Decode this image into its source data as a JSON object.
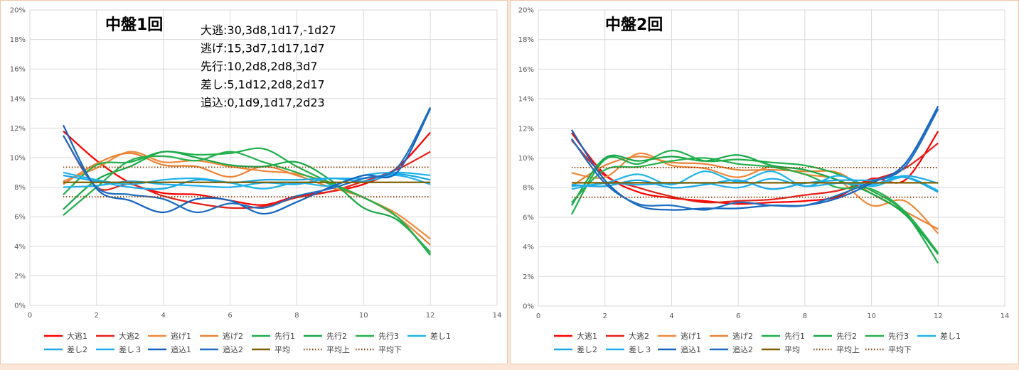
{
  "colors": {
    "background": "#fbe5d6",
    "plot_bg": "#ffffff",
    "grid": "#d9d9d9"
  },
  "legend_items": [
    {
      "label": "大逃1",
      "color": "#ff0000",
      "dash": "solid"
    },
    {
      "label": "大逃2",
      "color": "#e3221a",
      "dash": "solid"
    },
    {
      "label": "逃げ1",
      "color": "#f08a3c",
      "dash": "solid"
    },
    {
      "label": "逃げ2",
      "color": "#e98437",
      "dash": "solid"
    },
    {
      "label": "先行1",
      "color": "#1fb04b",
      "dash": "solid"
    },
    {
      "label": "先行2",
      "color": "#18a848",
      "dash": "solid"
    },
    {
      "label": "先行3",
      "color": "#27b14e",
      "dash": "solid"
    },
    {
      "label": "差し1",
      "color": "#22b5ea",
      "dash": "solid"
    },
    {
      "label": "差し2",
      "color": "#1aa9e6",
      "dash": "solid"
    },
    {
      "label": "差し３",
      "color": "#1fb0ec",
      "dash": "solid"
    },
    {
      "label": "追込1",
      "color": "#1565c0",
      "dash": "solid"
    },
    {
      "label": "追込2",
      "color": "#1f6fbf",
      "dash": "solid"
    },
    {
      "label": "平均",
      "color": "#7f6000",
      "dash": "solid"
    },
    {
      "label": "平均上",
      "color": "#8b4513",
      "dash": "dotted"
    },
    {
      "label": "平均下",
      "color": "#8b4513",
      "dash": "dotted"
    }
  ],
  "chart_data": [
    {
      "type": "line",
      "title": "中盤1回",
      "annotations": [
        "大逃:30,3d8,1d17,-1d27",
        "逃げ:15,3d7,1d17,1d7",
        "先行:10,2d8,2d8,3d7",
        "差し:5,1d12,2d8,2d17",
        "追込:0,1d9,1d17,2d23"
      ],
      "xlim": [
        0,
        14
      ],
      "ylim": [
        0,
        0.2
      ],
      "x_ticks": [
        "0",
        "2",
        "4",
        "6",
        "8",
        "10",
        "12",
        "14"
      ],
      "y_ticks": [
        "0%",
        "2%",
        "4%",
        "6%",
        "8%",
        "10%",
        "12%",
        "14%",
        "16%",
        "18%",
        "20%"
      ],
      "grid": true,
      "legend": "bottom",
      "x": [
        1,
        2,
        3,
        4,
        5,
        6,
        7,
        8,
        9,
        10,
        11,
        12
      ],
      "series": [
        {
          "name": "大逃1",
          "values": [
            0.118,
            0.098,
            0.083,
            0.076,
            0.075,
            0.071,
            0.068,
            0.074,
            0.077,
            0.082,
            0.093,
            0.117
          ]
        },
        {
          "name": "大逃2",
          "values": [
            0.115,
            0.08,
            0.082,
            0.074,
            0.069,
            0.066,
            0.067,
            0.073,
            0.077,
            0.084,
            0.092,
            0.104
          ]
        },
        {
          "name": "逃げ1",
          "values": [
            0.084,
            0.093,
            0.104,
            0.097,
            0.098,
            0.094,
            0.091,
            0.089,
            0.083,
            0.073,
            0.062,
            0.045
          ]
        },
        {
          "name": "逃げ2",
          "values": [
            0.082,
            0.096,
            0.103,
            0.095,
            0.094,
            0.087,
            0.094,
            0.088,
            0.08,
            0.073,
            0.06,
            0.041
          ]
        },
        {
          "name": "先行1",
          "values": [
            0.075,
            0.095,
            0.097,
            0.104,
            0.102,
            0.103,
            0.106,
            0.094,
            0.083,
            0.073,
            0.06,
            0.034
          ]
        },
        {
          "name": "先行2",
          "values": [
            0.065,
            0.085,
            0.094,
            0.104,
            0.1,
            0.095,
            0.094,
            0.097,
            0.085,
            0.066,
            0.058,
            0.036
          ]
        },
        {
          "name": "先行3",
          "values": [
            0.061,
            0.08,
            0.098,
            0.101,
            0.098,
            0.104,
            0.097,
            0.09,
            0.082,
            0.073,
            0.06,
            0.035
          ]
        },
        {
          "name": "差し1",
          "values": [
            0.09,
            0.085,
            0.082,
            0.085,
            0.086,
            0.083,
            0.079,
            0.083,
            0.081,
            0.088,
            0.09,
            0.088
          ]
        },
        {
          "name": "差し2",
          "values": [
            0.088,
            0.084,
            0.08,
            0.079,
            0.085,
            0.083,
            0.085,
            0.085,
            0.086,
            0.086,
            0.089,
            0.085
          ]
        },
        {
          "name": "差し３",
          "values": [
            0.08,
            0.081,
            0.084,
            0.082,
            0.081,
            0.08,
            0.083,
            0.082,
            0.086,
            0.084,
            0.088,
            0.082
          ]
        },
        {
          "name": "追込1",
          "values": [
            0.122,
            0.079,
            0.071,
            0.063,
            0.072,
            0.071,
            0.062,
            0.07,
            0.08,
            0.088,
            0.09,
            0.133
          ]
        },
        {
          "name": "追込2",
          "values": [
            0.115,
            0.08,
            0.075,
            0.072,
            0.063,
            0.069,
            0.066,
            0.074,
            0.079,
            0.086,
            0.093,
            0.134
          ]
        },
        {
          "name": "平均",
          "values": [
            0.0833,
            0.0833,
            0.0833,
            0.0833,
            0.0833,
            0.0833,
            0.0833,
            0.0833,
            0.0833,
            0.0833,
            0.0833,
            0.0833
          ]
        },
        {
          "name": "平均上",
          "values": [
            0.0935,
            0.0935,
            0.0935,
            0.0935,
            0.0935,
            0.0935,
            0.0935,
            0.0935,
            0.0935,
            0.0935,
            0.0935,
            0.0935
          ]
        },
        {
          "name": "平均下",
          "values": [
            0.0735,
            0.0735,
            0.0735,
            0.0735,
            0.0735,
            0.0735,
            0.0735,
            0.0735,
            0.0735,
            0.0735,
            0.0735,
            0.0735
          ]
        }
      ]
    },
    {
      "type": "line",
      "title": "中盤2回",
      "annotations": [],
      "xlim": [
        0,
        14
      ],
      "ylim": [
        0,
        0.2
      ],
      "x_ticks": [
        "0",
        "2",
        "4",
        "6",
        "8",
        "10",
        "12",
        "14"
      ],
      "y_ticks": [
        "0%",
        "2%",
        "4%",
        "6%",
        "8%",
        "10%",
        "12%",
        "14%",
        "16%",
        "18%",
        "20%"
      ],
      "grid": true,
      "legend": "bottom",
      "x": [
        1,
        2,
        3,
        4,
        5,
        6,
        7,
        8,
        9,
        10,
        11,
        12
      ],
      "series": [
        {
          "name": "大逃1",
          "values": [
            0.117,
            0.089,
            0.077,
            0.073,
            0.071,
            0.069,
            0.07,
            0.071,
            0.074,
            0.086,
            0.085,
            0.118
          ]
        },
        {
          "name": "大逃2",
          "values": [
            0.112,
            0.088,
            0.08,
            0.074,
            0.07,
            0.071,
            0.072,
            0.075,
            0.078,
            0.085,
            0.093,
            0.11
          ]
        },
        {
          "name": "逃げ1",
          "values": [
            0.09,
            0.087,
            0.103,
            0.095,
            0.093,
            0.087,
            0.094,
            0.089,
            0.085,
            0.068,
            0.071,
            0.049
          ]
        },
        {
          "name": "逃げ2",
          "values": [
            0.081,
            0.095,
            0.101,
            0.097,
            0.096,
            0.092,
            0.092,
            0.091,
            0.09,
            0.076,
            0.064,
            0.052
          ]
        },
        {
          "name": "先行1",
          "values": [
            0.062,
            0.099,
            0.096,
            0.105,
            0.098,
            0.099,
            0.097,
            0.095,
            0.089,
            0.078,
            0.063,
            0.029
          ]
        },
        {
          "name": "先行2",
          "values": [
            0.068,
            0.1,
            0.098,
            0.101,
            0.098,
            0.102,
            0.095,
            0.092,
            0.085,
            0.076,
            0.062,
            0.035
          ]
        },
        {
          "name": "先行3",
          "values": [
            0.07,
            0.092,
            0.094,
            0.098,
            0.1,
            0.096,
            0.094,
            0.089,
            0.08,
            0.079,
            0.064,
            0.036
          ]
        },
        {
          "name": "差し1",
          "values": [
            0.081,
            0.083,
            0.089,
            0.082,
            0.091,
            0.084,
            0.091,
            0.081,
            0.088,
            0.081,
            0.087,
            0.078
          ]
        },
        {
          "name": "差し2",
          "values": [
            0.082,
            0.081,
            0.085,
            0.08,
            0.082,
            0.085,
            0.079,
            0.083,
            0.085,
            0.085,
            0.087,
            0.077
          ]
        },
        {
          "name": "差し３",
          "values": [
            0.079,
            0.083,
            0.082,
            0.083,
            0.083,
            0.08,
            0.086,
            0.081,
            0.083,
            0.082,
            0.088,
            0.083
          ]
        },
        {
          "name": "追込1",
          "values": [
            0.119,
            0.085,
            0.068,
            0.065,
            0.066,
            0.066,
            0.068,
            0.068,
            0.073,
            0.083,
            0.096,
            0.135
          ]
        },
        {
          "name": "追込2",
          "values": [
            0.113,
            0.083,
            0.069,
            0.068,
            0.065,
            0.07,
            0.068,
            0.068,
            0.075,
            0.084,
            0.094,
            0.133
          ]
        },
        {
          "name": "平均",
          "values": [
            0.0833,
            0.0833,
            0.0833,
            0.0833,
            0.0833,
            0.0833,
            0.0833,
            0.0833,
            0.0833,
            0.0833,
            0.0833,
            0.0833
          ]
        },
        {
          "name": "平均上",
          "values": [
            0.0935,
            0.0935,
            0.0935,
            0.0935,
            0.0935,
            0.0935,
            0.0935,
            0.0935,
            0.0935,
            0.0935,
            0.0935,
            0.0935
          ]
        },
        {
          "name": "平均下",
          "values": [
            0.0735,
            0.0735,
            0.0735,
            0.0735,
            0.0735,
            0.0735,
            0.0735,
            0.0735,
            0.0735,
            0.0735,
            0.0735,
            0.0735
          ]
        }
      ]
    }
  ]
}
